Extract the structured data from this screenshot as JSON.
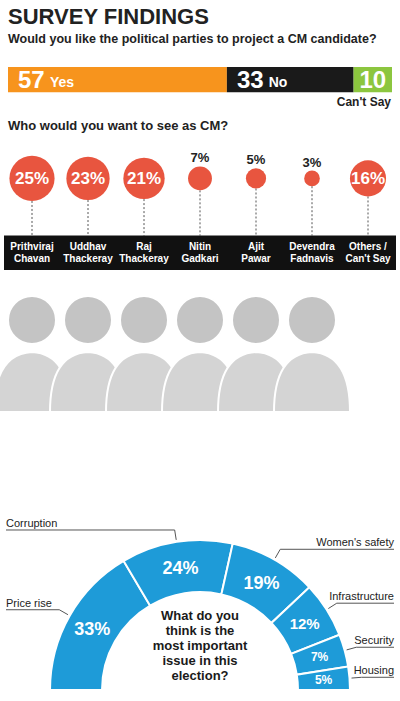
{
  "title": "SURVEY FINDINGS",
  "chart_data": [
    {
      "type": "bar",
      "title": "Would you like the political parties to project a CM candidate?",
      "orientation": "horizontal",
      "stacked": true,
      "categories": [
        null
      ],
      "series": [
        {
          "name": "Yes",
          "color": "#f7941d",
          "values": [
            57
          ]
        },
        {
          "name": "No",
          "color": "#1a1a1a",
          "values": [
            33
          ]
        },
        {
          "name": "Can't Say",
          "color": "#8cc63f",
          "values": [
            10
          ]
        }
      ],
      "xlim": [
        0,
        100
      ],
      "tick_labels": false,
      "data_labels": true
    },
    {
      "type": "bubble",
      "title": "Who would you want to see as CM?",
      "categories": [
        "Prithviraj Chavan",
        "Uddhav Thackeray",
        "Raj Thackeray",
        "Nitin Gadkari",
        "Ajit Pawar",
        "Devendra Fadnavis",
        "Others / Can't Say"
      ],
      "values": [
        25,
        23,
        21,
        7,
        5,
        3,
        16
      ],
      "value_labels": [
        "25%",
        "23%",
        "21%",
        "7%",
        "5%",
        "3%",
        "16%"
      ],
      "color": "#e8553f",
      "data_labels": true,
      "tick_labels": "x"
    },
    {
      "type": "pie",
      "title": "What do you think is the most important issue in this election?",
      "categories": [
        "Price rise",
        "Corruption",
        "Women's safety",
        "Infrastructure",
        "Security",
        "Housing"
      ],
      "values": [
        33,
        24,
        19,
        12,
        7,
        5
      ],
      "value_labels": [
        "33%",
        "24%",
        "19%",
        "12%",
        "7%",
        "5%"
      ],
      "color": "#1e9bd8",
      "data_labels": true
    }
  ]
}
